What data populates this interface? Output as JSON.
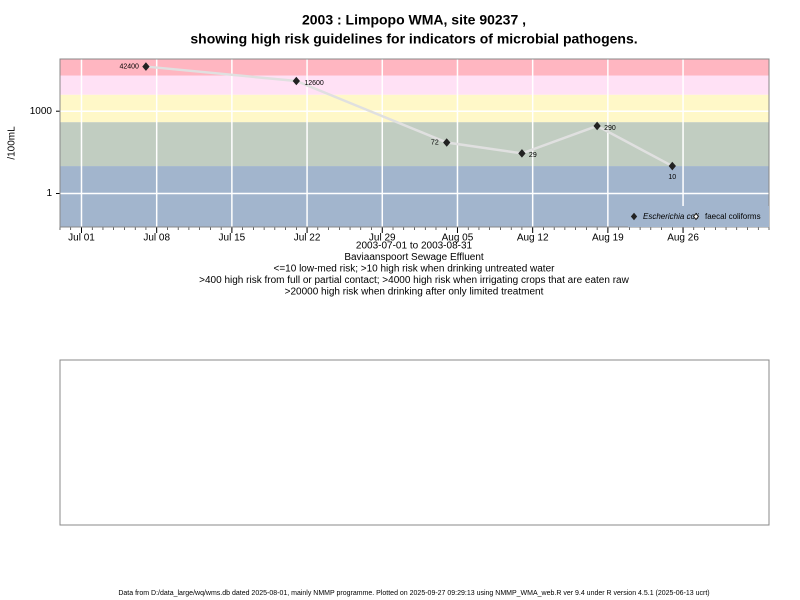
{
  "chart_data": {
    "type": "line",
    "title": [
      "2003 : Limpopo WMA, site 90237 ,",
      "showing high risk guidelines for indicators of microbial pathogens."
    ],
    "ylabel": "/100mL",
    "xlabel": [
      "2003-07-01 to 2003-08-31",
      "Baviaanspoort Sewage Effluent",
      "<=10 low-med risk; >10 high risk when drinking untreated water",
      ">400 high risk from full or partial contact; >4000 high risk when irrigating crops that are eaten raw",
      ">20000 high risk when drinking after only limited treatment"
    ],
    "x": [
      "2003-07-07",
      "2003-07-21",
      "2003-08-04",
      "2003-08-11",
      "2003-08-18",
      "2003-08-25"
    ],
    "series": [
      {
        "name": "Escherichia coli",
        "color": "#222222",
        "line_color": "#e0e0e0",
        "values": [
          42400,
          12600,
          72,
          29,
          290,
          10
        ]
      },
      {
        "name": "faecal coliforms",
        "color": "#222222",
        "values": [
          null,
          null,
          null,
          null,
          null,
          null
        ]
      }
    ],
    "xlim": [
      "2003-06-29",
      "2003-09-03"
    ],
    "xticks": [
      {
        "value": "2003-07-01",
        "label": "Jul 01"
      },
      {
        "value": "2003-07-08",
        "label": "Jul 08"
      },
      {
        "value": "2003-07-15",
        "label": "Jul 15"
      },
      {
        "value": "2003-07-22",
        "label": "Jul 22"
      },
      {
        "value": "2003-07-29",
        "label": "Jul 29"
      },
      {
        "value": "2003-08-05",
        "label": "Aug 05"
      },
      {
        "value": "2003-08-12",
        "label": "Aug 12"
      },
      {
        "value": "2003-08-19",
        "label": "Aug 19"
      },
      {
        "value": "2003-08-26",
        "label": "Aug 26"
      }
    ],
    "ylim": [
      0.06,
      80000
    ],
    "yticks": [
      1,
      1000
    ],
    "log_y": true,
    "grid": true,
    "band_edges": [
      10,
      400,
      4000,
      20000
    ],
    "band_colors": [
      "#a2b5cd",
      "#c1cdc1",
      "#fff8c8",
      "#ffe1f5",
      "#ffb6c1"
    ],
    "legend": "bottom-right",
    "footer": "Data from D:/data_large/wq/wms.db dated 2025-08-01, mainly NMMP programme. Plotted on 2025-09-27 09:29:13 using NMMP_WMA_web.R ver 9.4 under R version 4.5.1 (2025-06-13 ucrt)"
  }
}
